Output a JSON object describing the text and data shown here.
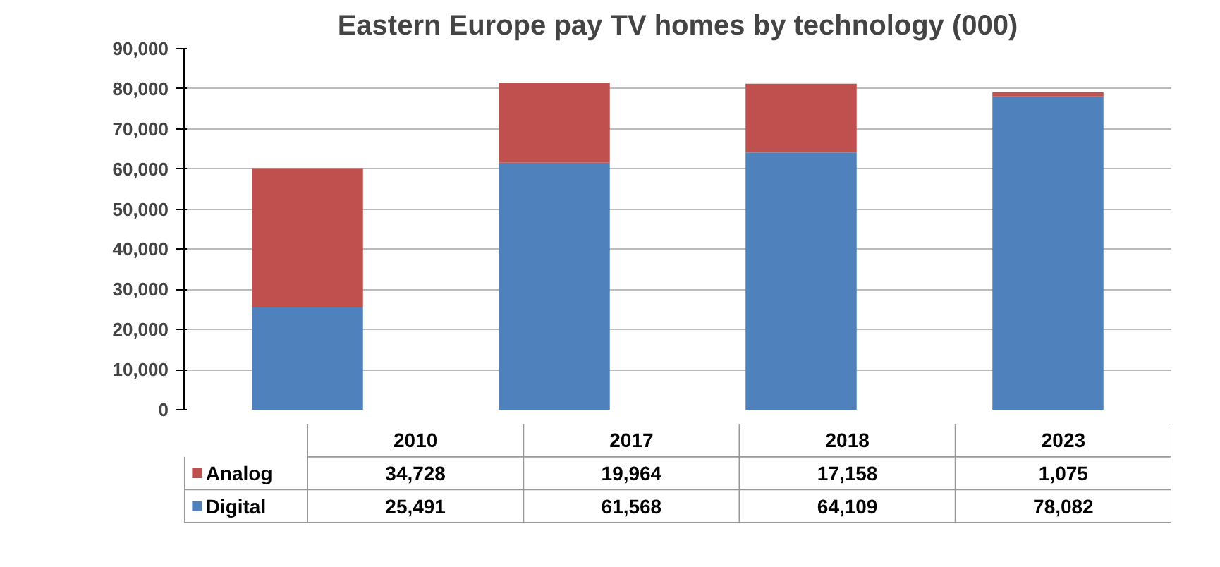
{
  "chart_data": {
    "type": "bar",
    "title": "Eastern Europe pay TV homes by technology (000)",
    "categories": [
      "2010",
      "2017",
      "2018",
      "2023"
    ],
    "stacked": true,
    "legend": "bottom",
    "grid": "y",
    "ylim": [
      0,
      90000
    ],
    "yticks": [
      {
        "value": 0,
        "label": "0"
      },
      {
        "value": 10000,
        "label": "10,000"
      },
      {
        "value": 20000,
        "label": "20,000"
      },
      {
        "value": 30000,
        "label": "30,000"
      },
      {
        "value": 40000,
        "label": "40,000"
      },
      {
        "value": 50000,
        "label": "50,000"
      },
      {
        "value": 60000,
        "label": "60,000"
      },
      {
        "value": 70000,
        "label": "70,000"
      },
      {
        "value": 80000,
        "label": "80,000"
      },
      {
        "value": 90000,
        "label": "90,000"
      }
    ],
    "series": [
      {
        "name": "Digital",
        "color": "#4f81bd",
        "values": [
          25491,
          61568,
          64109,
          78082
        ],
        "value_labels": [
          "25,491",
          "61,568",
          "64,109",
          "78,082"
        ]
      },
      {
        "name": "Analog",
        "color": "#c0504d",
        "values": [
          34728,
          19964,
          17158,
          1075
        ],
        "value_labels": [
          "34,728",
          "19,964",
          "17,158",
          "1,075"
        ]
      }
    ]
  }
}
